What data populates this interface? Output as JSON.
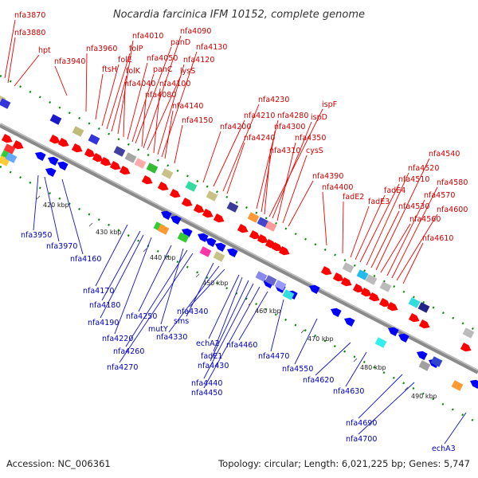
{
  "title": "Nocardia farcinica IFM 10152, complete genome",
  "footer": {
    "accession": "Accession: NC_006361",
    "summary": "Topology: circular; Length: 6,021,225 bp; Genes: 5,747"
  },
  "colors": {
    "forward_gene": "#ff0000",
    "reverse_gene": "#0000ff",
    "forward_label": "#cc0000",
    "reverse_label": "#0000bb",
    "backbone": "#888888"
  },
  "kbp_ticks": [
    "420 kbp",
    "430 kbp",
    "440 kbp",
    "450 kbp",
    "460 kbp",
    "470 kbp",
    "480 kbp",
    "490 kbp"
  ],
  "genes_top": [
    "nfa3870",
    "nfa3880",
    "hpt",
    "nfa3940",
    "nfa3960",
    "ftsH",
    "folE",
    "folP",
    "folK",
    "nfa4010",
    "nfa4040",
    "nfa4050",
    "panC",
    "panD",
    "nfa4080",
    "nfa4090",
    "lysS",
    "nfa4100",
    "nfa4120",
    "nfa4130",
    "nfa4140",
    "nfa4150",
    "nfa4200",
    "nfa4210",
    "nfa4230",
    "nfa4240",
    "nfa4280",
    "nfa4300",
    "nfa4310",
    "ispF",
    "ispD",
    "nfa4350",
    "cysS",
    "nfa4390",
    "nfa4400",
    "fadE2",
    "fadE3",
    "fadE4",
    "nfa4510",
    "nfa4520",
    "nfa4530",
    "nfa4540",
    "nfa4560",
    "nfa4570",
    "nfa4580",
    "nfa4600",
    "nfa4610"
  ],
  "genes_bottom": [
    "nfa3950",
    "nfa3970",
    "nfa4160",
    "nfa4170",
    "nfa4180",
    "nfa4190",
    "nfa4220",
    "nfa4250",
    "mutY",
    "nfa4260",
    "nfa4270",
    "sms",
    "nfa4330",
    "nfa4340",
    "echA2",
    "fadE1",
    "nfa4430",
    "nfa4440",
    "nfa4450",
    "nfa4460",
    "nfa4470",
    "nfa4550",
    "nfa4620",
    "nfa4630",
    "nfa4690",
    "nfa4700",
    "echA3"
  ]
}
